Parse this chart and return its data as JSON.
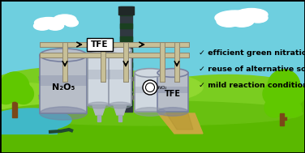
{
  "bg_sky": "#6ECFDF",
  "bg_ground_dark": "#5AB800",
  "bg_ground_mid": "#7ACD20",
  "bg_ground_light": "#9AE040",
  "bg_water": "#40B8C8",
  "tank_gray": "#B8BEC8",
  "tank_dark": "#7880A0",
  "tank_light": "#D0D8E0",
  "pipe_tan": "#C8C098",
  "pipe_dark": "#908870",
  "chimney_dark": "#303840",
  "chimney_green": "#1A4020",
  "scaffold": "#6A7060",
  "text_n2o5": "N₂O₅",
  "text_tfe_label": "TFE",
  "text_tfe_tank": "TFE",
  "text_bullet1": "✓ efficient green nitration",
  "text_bullet2": "✓ reuse of alternative solvent",
  "text_bullet3": "✓ mild reaction conditions",
  "path_color": "#C8A840",
  "path_dark": "#B09030",
  "cloud_color": "#FFFFFF",
  "tree_trunk": "#7A4818",
  "tree_green": "#60C800",
  "tree_dark": "#40A000",
  "border_color": "#000000",
  "arrow_color": "#101010",
  "white": "#FFFFFF",
  "black": "#000000",
  "hose_color": "#204830"
}
